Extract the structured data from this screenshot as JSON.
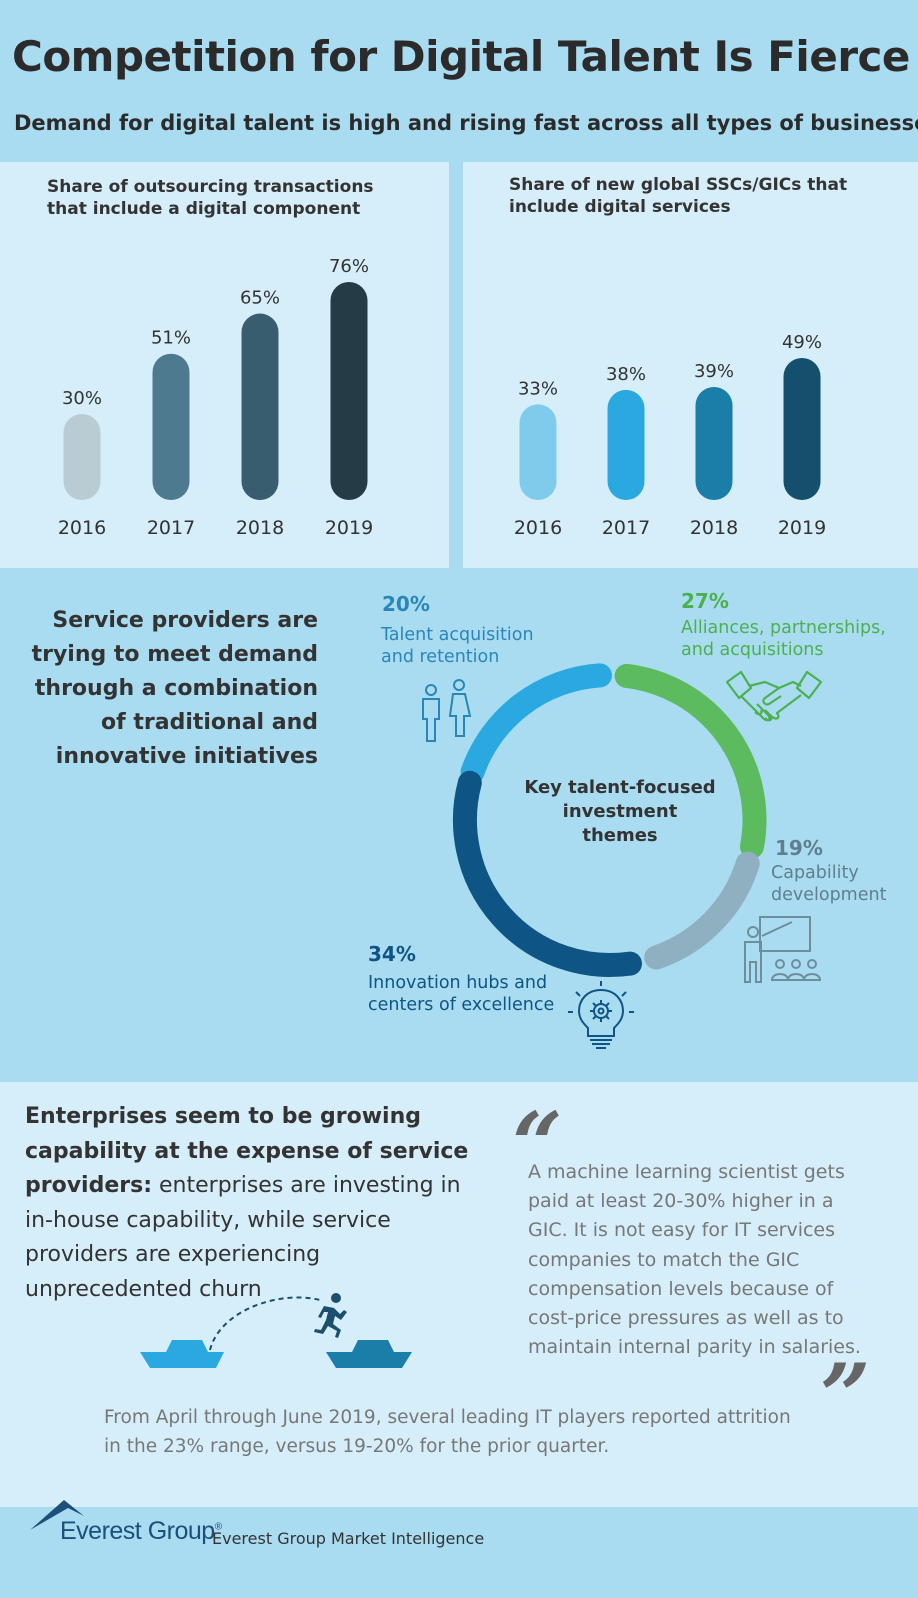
{
  "header": {
    "title": "Competition for Digital Talent Is Fierce",
    "subtitle": "Demand for digital talent is high and rising fast across all types of businesses"
  },
  "chart_data": [
    {
      "type": "bar",
      "title": "Share of outsourcing transactions that include a digital component",
      "title_lines": [
        "Share of outsourcing transactions",
        "that include a digital component"
      ],
      "categories": [
        "2016",
        "2017",
        "2018",
        "2019"
      ],
      "values": [
        30,
        51,
        65,
        76
      ],
      "labels": [
        "30%",
        "51%",
        "65%",
        "76%"
      ],
      "colors": [
        "#b9cbd3",
        "#4d7a8e",
        "#375d6e",
        "#253c47"
      ],
      "ylim": [
        0,
        76
      ]
    },
    {
      "type": "bar",
      "title": "Share of new global SSCs/GICs that include digital services",
      "title_lines": [
        "Share of new global SSCs/GICs that",
        "include digital services"
      ],
      "categories": [
        "2016",
        "2017",
        "2018",
        "2019"
      ],
      "values": [
        33,
        38,
        39,
        49
      ],
      "labels": [
        "33%",
        "38%",
        "39%",
        "49%"
      ],
      "colors": [
        "#7ecbeb",
        "#2aa9e0",
        "#1b7ea9",
        "#14506e"
      ],
      "ylim": [
        0,
        49
      ]
    }
  ],
  "initiatives": {
    "heading_lines": [
      "Service providers are",
      "trying to meet demand",
      "through a combination",
      "of traditional and",
      "innovative initiatives"
    ],
    "center_lines": [
      "Key talent-focused",
      "investment",
      "themes"
    ],
    "segments": [
      {
        "pct": "20%",
        "value": 20,
        "label_lines": [
          "Talent acquisition",
          "and retention"
        ],
        "color": "#2aa9e0",
        "icon": "people-icon"
      },
      {
        "pct": "27%",
        "value": 27,
        "label_lines": [
          "Alliances, partnerships,",
          "and acquisitions"
        ],
        "color": "#5cba5f",
        "icon": "handshake-icon"
      },
      {
        "pct": "19%",
        "value": 19,
        "label_lines": [
          "Capability",
          "development"
        ],
        "color": "#8fb0c0",
        "icon": "teacher-icon"
      },
      {
        "pct": "34%",
        "value": 34,
        "label_lines": [
          "Innovation hubs and",
          "centers of excellence"
        ],
        "color": "#0e5585",
        "icon": "lightbulb-gear-icon"
      }
    ]
  },
  "enterprise": {
    "bold_lines": [
      "Enterprises seem to be growing",
      "capability at the expense of service",
      "providers:"
    ],
    "rest_first": " enterprises are investing in",
    "rest_lines": [
      "in-house capability, while service",
      "providers are experiencing",
      "unprecedented churn"
    ],
    "quote_lines": [
      "A machine learning scientist gets",
      "paid at least 20-30% higher in a",
      "GIC. It is not easy for IT services",
      "companies to match the GIC",
      "compensation levels because of",
      "cost-price pressures as well as to",
      "maintain internal parity in salaries."
    ],
    "attrition_lines": [
      "From April through June 2019, several leading IT players reported attrition",
      "in the 23% range, versus 19-20% for the prior quarter."
    ]
  },
  "footer": {
    "brand": "Everest Group",
    "registered": "®",
    "tagline": "Everest Group Market Intelligence"
  }
}
